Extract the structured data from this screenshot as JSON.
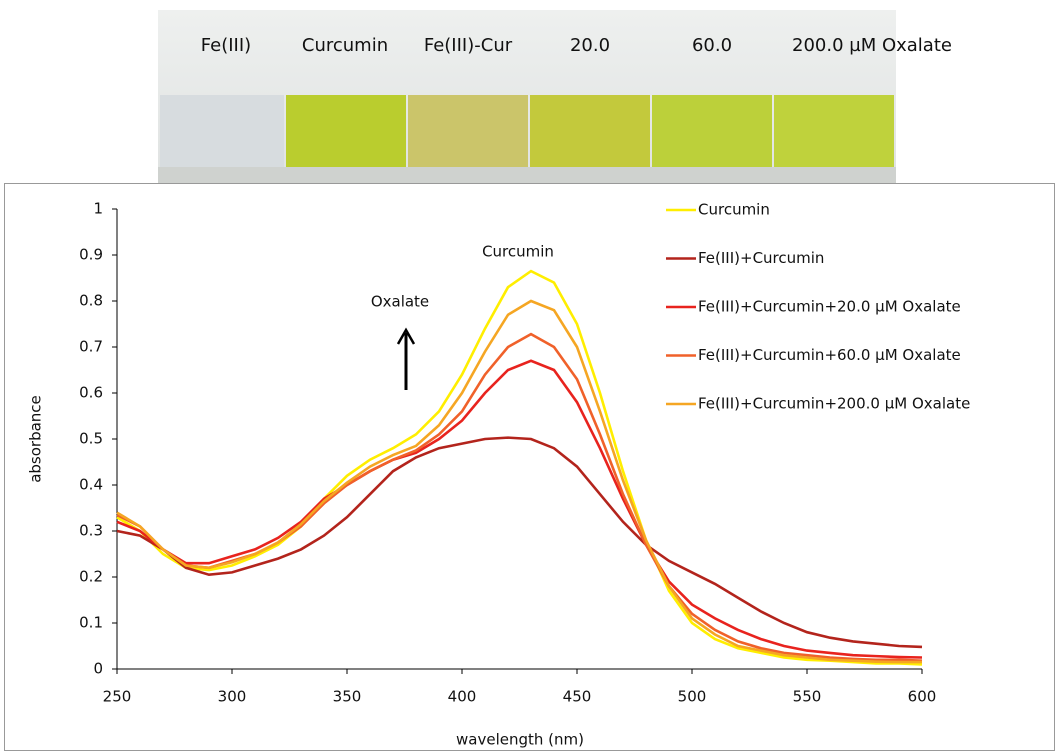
{
  "photo": {
    "labels": [
      "Fe(III)",
      "Curcumin",
      "Fe(III)-Cur",
      "20.0",
      "60.0",
      "200.0 µM Oxalate"
    ]
  },
  "chart_data": {
    "type": "line",
    "x_label": "wavelength (nm)",
    "y_label": "absorbance",
    "annotations": [
      "Curcumin",
      "Oxalate"
    ],
    "x": [
      250,
      260,
      270,
      280,
      290,
      300,
      310,
      320,
      330,
      340,
      350,
      360,
      370,
      380,
      390,
      400,
      410,
      420,
      430,
      440,
      450,
      460,
      470,
      480,
      490,
      500,
      510,
      520,
      530,
      540,
      550,
      560,
      570,
      580,
      590,
      600
    ],
    "xlim": [
      250,
      600
    ],
    "xticks": [
      250,
      300,
      350,
      400,
      450,
      500,
      550,
      600
    ],
    "ylim": [
      0,
      1
    ],
    "yticks": [
      0,
      0.1,
      0.2,
      0.3,
      0.4,
      0.5,
      0.6,
      0.7,
      0.8,
      0.9,
      1
    ],
    "grid": false,
    "legend": "upper right",
    "series": [
      {
        "name": "Curcumin",
        "color": "#ffee00",
        "values": [
          0.33,
          0.3,
          0.25,
          0.22,
          0.215,
          0.225,
          0.245,
          0.27,
          0.31,
          0.37,
          0.42,
          0.455,
          0.48,
          0.51,
          0.56,
          0.64,
          0.74,
          0.83,
          0.865,
          0.84,
          0.75,
          0.6,
          0.43,
          0.28,
          0.17,
          0.1,
          0.065,
          0.045,
          0.035,
          0.025,
          0.02,
          0.018,
          0.015,
          0.012,
          0.012,
          0.01
        ]
      },
      {
        "name": "Fe(III)+Curcumin",
        "color": "#b3241c",
        "values": [
          0.3,
          0.29,
          0.26,
          0.22,
          0.205,
          0.21,
          0.225,
          0.24,
          0.26,
          0.29,
          0.33,
          0.38,
          0.43,
          0.46,
          0.48,
          0.49,
          0.5,
          0.503,
          0.5,
          0.48,
          0.44,
          0.38,
          0.32,
          0.27,
          0.235,
          0.21,
          0.185,
          0.155,
          0.125,
          0.1,
          0.08,
          0.068,
          0.06,
          0.055,
          0.05,
          0.048
        ]
      },
      {
        "name": "Fe(III)+Curcumin+20.0 µM Oxalate",
        "color": "#e8231e",
        "values": [
          0.32,
          0.3,
          0.26,
          0.23,
          0.23,
          0.245,
          0.26,
          0.285,
          0.32,
          0.37,
          0.4,
          0.43,
          0.455,
          0.47,
          0.5,
          0.54,
          0.6,
          0.65,
          0.67,
          0.65,
          0.58,
          0.48,
          0.37,
          0.27,
          0.19,
          0.14,
          0.11,
          0.085,
          0.065,
          0.05,
          0.04,
          0.035,
          0.03,
          0.028,
          0.026,
          0.025
        ]
      },
      {
        "name": "Fe(III)+Curcumin+60.0 µM Oxalate",
        "color": "#f0612a",
        "values": [
          0.335,
          0.31,
          0.26,
          0.225,
          0.22,
          0.235,
          0.25,
          0.275,
          0.31,
          0.36,
          0.4,
          0.43,
          0.455,
          0.475,
          0.51,
          0.56,
          0.64,
          0.7,
          0.728,
          0.7,
          0.63,
          0.51,
          0.38,
          0.27,
          0.18,
          0.12,
          0.085,
          0.06,
          0.045,
          0.035,
          0.03,
          0.025,
          0.022,
          0.02,
          0.02,
          0.018
        ]
      },
      {
        "name": "Fe(III)+Curcumin+200.0 µM Oxalate",
        "color": "#f5a623",
        "values": [
          0.34,
          0.31,
          0.26,
          0.225,
          0.22,
          0.232,
          0.25,
          0.275,
          0.315,
          0.365,
          0.405,
          0.44,
          0.465,
          0.485,
          0.53,
          0.6,
          0.69,
          0.77,
          0.8,
          0.78,
          0.7,
          0.56,
          0.41,
          0.28,
          0.18,
          0.11,
          0.075,
          0.05,
          0.04,
          0.03,
          0.025,
          0.02,
          0.018,
          0.016,
          0.015,
          0.015
        ]
      }
    ]
  }
}
